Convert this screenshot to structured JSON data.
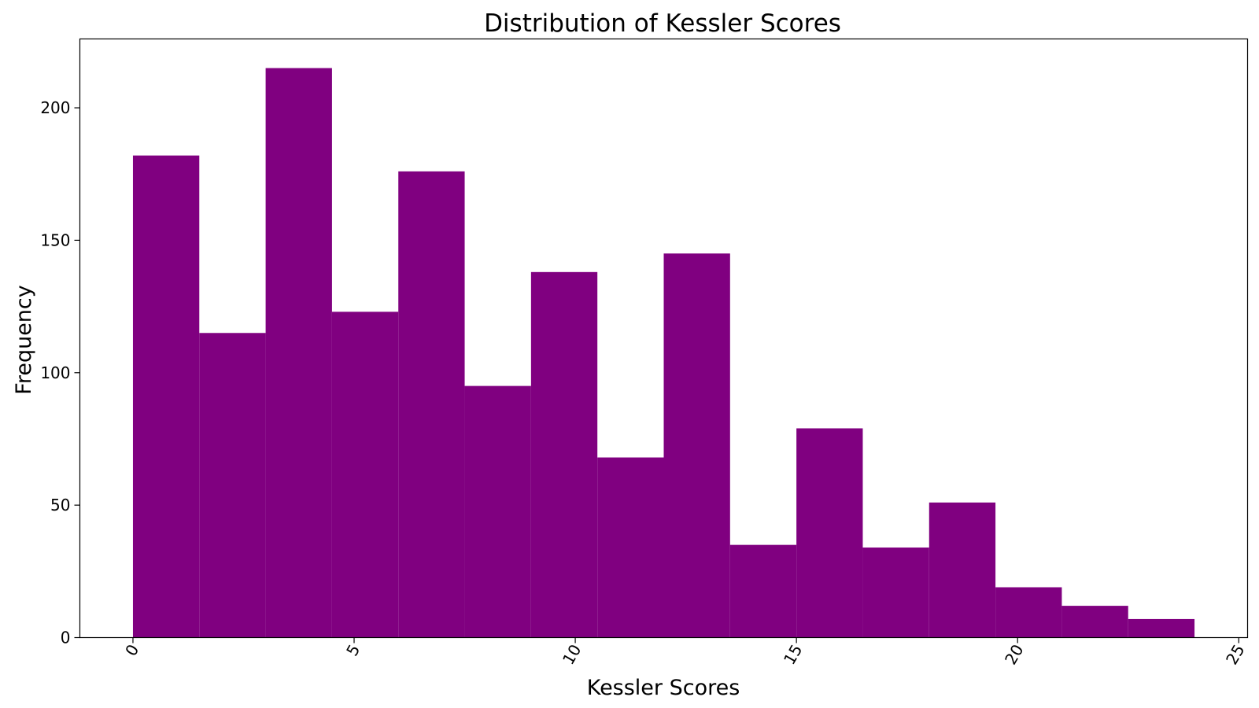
{
  "chart_data": {
    "type": "bar",
    "title": "Distribution of Kessler Scores",
    "xlabel": "Kessler Scores",
    "ylabel": "Frequency",
    "bin_edges": [
      0,
      1.5,
      3,
      4.5,
      6,
      7.5,
      9,
      10.5,
      12,
      13.5,
      15,
      16.5,
      18,
      19.5,
      21,
      22.5,
      24
    ],
    "values": [
      182,
      115,
      215,
      123,
      176,
      95,
      138,
      68,
      145,
      35,
      79,
      34,
      51,
      19,
      12,
      7
    ],
    "xlim": [
      -1.2,
      25.2
    ],
    "ylim": [
      0,
      226
    ],
    "x_ticks": [
      0,
      5,
      10,
      15,
      20,
      25
    ],
    "x_tick_labels": [
      "0",
      "5",
      "10",
      "15",
      "20",
      "25"
    ],
    "y_ticks": [
      0,
      50,
      100,
      150,
      200
    ],
    "y_tick_labels": [
      "0",
      "50",
      "100",
      "150",
      "200"
    ],
    "x_tick_rotation_deg": 60,
    "grid": false,
    "legend": false,
    "bar_color": "#800080"
  }
}
